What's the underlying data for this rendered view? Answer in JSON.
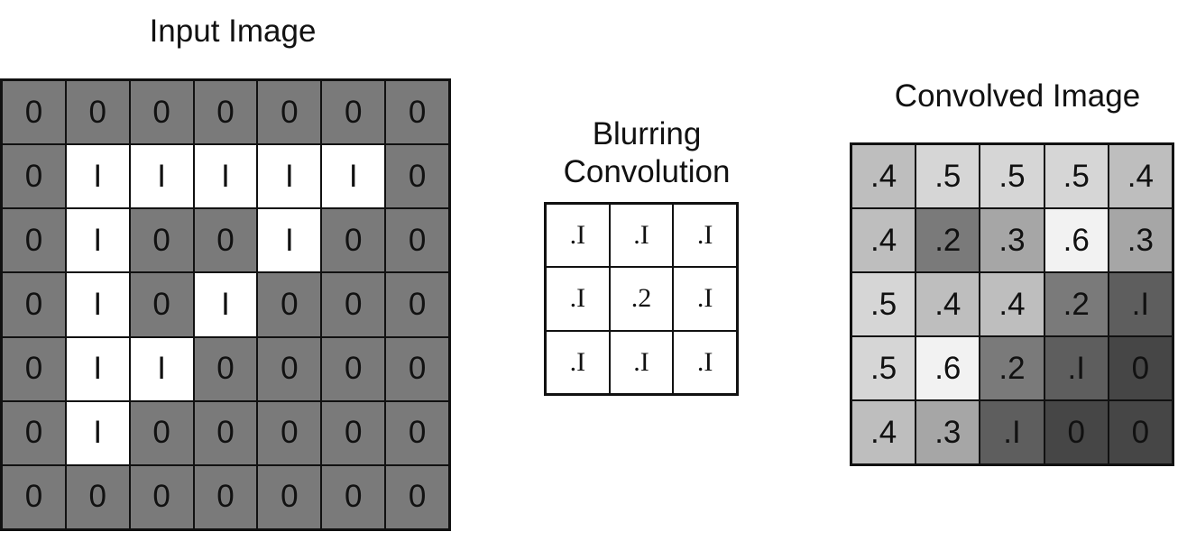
{
  "input_image": {
    "title": "Input Image",
    "colors": {
      "0": "#7a7a7a",
      "I": "#ffffff"
    },
    "rows": [
      [
        "0",
        "0",
        "0",
        "0",
        "0",
        "0",
        "0"
      ],
      [
        "0",
        "I",
        "I",
        "I",
        "I",
        "I",
        "0"
      ],
      [
        "0",
        "I",
        "0",
        "0",
        "I",
        "0",
        "0"
      ],
      [
        "0",
        "I",
        "0",
        "I",
        "0",
        "0",
        "0"
      ],
      [
        "0",
        "I",
        "I",
        "0",
        "0",
        "0",
        "0"
      ],
      [
        "0",
        "I",
        "0",
        "0",
        "0",
        "0",
        "0"
      ],
      [
        "0",
        "0",
        "0",
        "0",
        "0",
        "0",
        "0"
      ]
    ]
  },
  "kernel": {
    "title_line1": "Blurring",
    "title_line2": "Convolution",
    "rows": [
      [
        ".I",
        ".I",
        ".I"
      ],
      [
        ".I",
        ".2",
        ".I"
      ],
      [
        ".I",
        ".I",
        ".I"
      ]
    ]
  },
  "convolved_image": {
    "title": "Convolved Image",
    "colors": {
      "0": "#464646",
      ".I": "#5e5e5e",
      ".2": "#7a7a7a",
      ".3": "#a6a6a6",
      ".4": "#bebebe",
      ".5": "#d6d6d6",
      ".6": "#f2f2f2"
    },
    "rows": [
      [
        ".4",
        ".5",
        ".5",
        ".5",
        ".4"
      ],
      [
        ".4",
        ".2",
        ".3",
        ".6",
        ".3"
      ],
      [
        ".5",
        ".4",
        ".4",
        ".2",
        ".I"
      ],
      [
        ".5",
        ".6",
        ".2",
        ".I",
        "0"
      ],
      [
        ".4",
        ".3",
        ".I",
        "0",
        "0"
      ]
    ]
  }
}
